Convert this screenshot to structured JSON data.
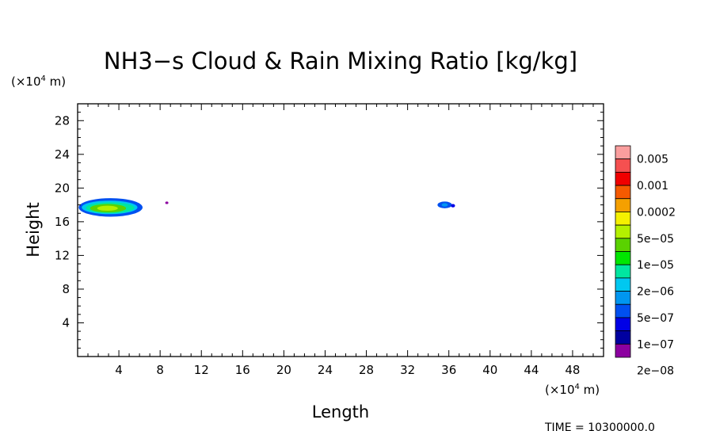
{
  "chart_data": {
    "type": "heatmap",
    "title": "NH3−s Cloud & Rain Mixing Ratio [kg/kg]",
    "xlabel": "Length",
    "ylabel": "Height",
    "x_unit": {
      "prefix": "(×10",
      "exp": "4",
      "suffix": " m)"
    },
    "y_unit": {
      "prefix": "(×10",
      "exp": "4",
      "suffix": " m)"
    },
    "xlim": [
      0,
      51
    ],
    "ylim": [
      0,
      30
    ],
    "x_ticks": [
      4,
      8,
      12,
      16,
      20,
      24,
      28,
      32,
      36,
      40,
      44,
      48
    ],
    "y_ticks": [
      4,
      8,
      12,
      16,
      20,
      24,
      28
    ],
    "colorbar": {
      "labels": [
        "0.005",
        "0.001",
        "0.0002",
        "5e−05",
        "1e−05",
        "2e−06",
        "5e−07",
        "1e−07",
        "2e−08"
      ],
      "colors": [
        "#fa9e9e",
        "#f55050",
        "#f00000",
        "#f55a00",
        "#f5a000",
        "#f5f000",
        "#b4f000",
        "#5ad200",
        "#00e600",
        "#00e6a0",
        "#00c8f0",
        "#0096f0",
        "#0050f0",
        "#0000e6",
        "#0000a0",
        "#8c00a0"
      ]
    },
    "regions": [
      {
        "level": "1e-07",
        "color": "#0050f0",
        "x": [
          0.1,
          6.3
        ],
        "y": [
          16.6,
          18.8
        ]
      },
      {
        "level": "5e-07",
        "color": "#00c8f0",
        "x": [
          0.4,
          5.8
        ],
        "y": [
          16.9,
          18.5
        ]
      },
      {
        "level": "2e-06",
        "color": "#00e6a0",
        "x": [
          0.8,
          5.5
        ],
        "y": [
          17.0,
          18.3
        ]
      },
      {
        "level": "1e-05",
        "color": "#5ad200",
        "x": [
          1.2,
          4.7
        ],
        "y": [
          17.1,
          18.1
        ]
      },
      {
        "level": "5e-05",
        "color": "#b4f000",
        "x": [
          1.9,
          3.9
        ],
        "y": [
          17.3,
          17.9
        ]
      },
      {
        "level": "2e-08",
        "color": "#8c00a0",
        "x": [
          8.5,
          8.8
        ],
        "y": [
          18.1,
          18.4
        ]
      },
      {
        "level": "1e-07",
        "color": "#0050f0",
        "x": [
          34.9,
          36.3
        ],
        "y": [
          17.6,
          18.4
        ]
      },
      {
        "level": "5e-07",
        "color": "#0096f0",
        "x": [
          35.3,
          35.9
        ],
        "y": [
          17.8,
          18.2
        ]
      },
      {
        "level": "1e-07",
        "color": "#0000e6",
        "x": [
          36.2,
          36.6
        ],
        "y": [
          17.7,
          18.1
        ]
      }
    ]
  },
  "time_label": "TIME = 10300000.0"
}
